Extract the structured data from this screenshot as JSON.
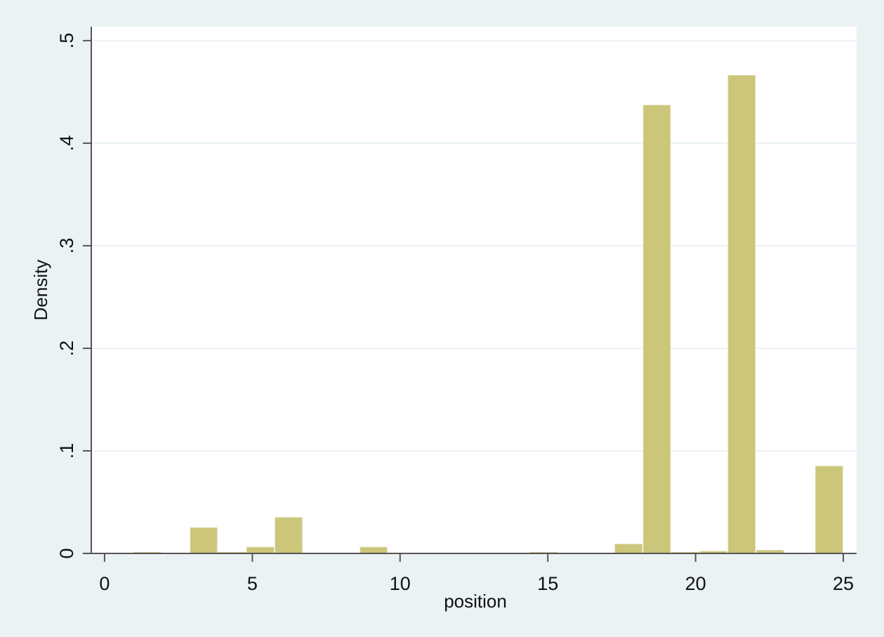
{
  "colors": {
    "outer_background": "#eaf2f3",
    "plot_background": "#ffffff",
    "bar_fill": "#cbc67a",
    "bar_outline": "#d8d49c",
    "gridline": "#eaf2f3",
    "axis": "#555555"
  },
  "chart_data": {
    "type": "bar",
    "title": "",
    "xlabel": "position",
    "ylabel": "Density",
    "xlim": [
      -0.45,
      25.45
    ],
    "ylim": [
      0,
      0.5136
    ],
    "x_ticks": [
      0,
      5,
      10,
      15,
      20,
      25
    ],
    "x_tick_labels": [
      "0",
      "5",
      "10",
      "15",
      "20",
      "25"
    ],
    "y_ticks": [
      0,
      0.1,
      0.2,
      0.3,
      0.4,
      0.5
    ],
    "y_tick_labels": [
      "0",
      ".1",
      ".2",
      ".3",
      ".4",
      ".5"
    ],
    "grid": true,
    "legend": "none",
    "bin_width": 0.9583,
    "bins": [
      {
        "x0": 0.96,
        "x1": 1.92,
        "value": 0.001
      },
      {
        "x0": 2.88,
        "x1": 3.83,
        "value": 0.025
      },
      {
        "x0": 3.83,
        "x1": 4.79,
        "value": 0.001
      },
      {
        "x0": 4.79,
        "x1": 5.75,
        "value": 0.006
      },
      {
        "x0": 5.75,
        "x1": 6.71,
        "value": 0.035
      },
      {
        "x0": 8.63,
        "x1": 9.58,
        "value": 0.006
      },
      {
        "x0": 14.38,
        "x1": 15.33,
        "value": 0.001
      },
      {
        "x0": 17.25,
        "x1": 18.21,
        "value": 0.009
      },
      {
        "x0": 18.21,
        "x1": 19.17,
        "value": 0.437
      },
      {
        "x0": 19.17,
        "x1": 20.13,
        "value": 0.001
      },
      {
        "x0": 20.13,
        "x1": 21.08,
        "value": 0.002
      },
      {
        "x0": 21.08,
        "x1": 22.04,
        "value": 0.466
      },
      {
        "x0": 22.04,
        "x1": 23.0,
        "value": 0.003
      },
      {
        "x0": 24.04,
        "x1": 25.0,
        "value": 0.085
      }
    ]
  }
}
